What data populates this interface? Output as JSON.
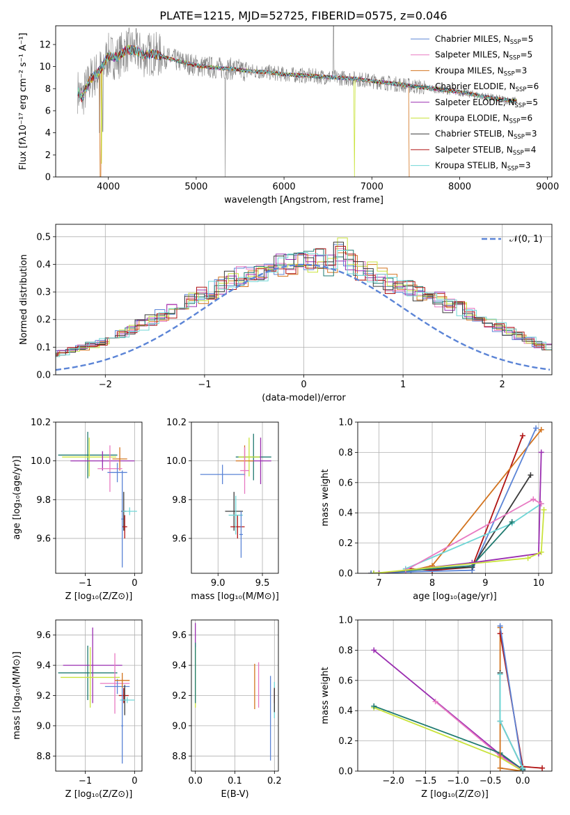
{
  "title": "PLATE=1215, MJD=52725, FIBERID=0575, z=0.046",
  "colors": {
    "chabrier_miles": "#5b84d6",
    "salpeter_miles": "#e879c2",
    "kroupa_miles": "#d2731e",
    "chabrier_elodie": "#1f7a70",
    "salpeter_elodie": "#9a2db0",
    "kroupa_elodie": "#c9e33c",
    "chabrier_stelib": "#3a3a3a",
    "salpeter_stelib": "#b01212",
    "kroupa_stelib": "#6fd6d6",
    "data_gray": "#808080",
    "normal_dashed": "#5b84d6"
  },
  "chart_data": [
    {
      "id": "spectrum",
      "type": "line",
      "xlabel": "wavelength [Angstrom, rest frame]",
      "ylabel": "Flux [fλ10⁻¹⁷ erg cm⁻² s⁻¹ A⁻¹]",
      "xlim": [
        3400,
        9050
      ],
      "ylim": [
        0,
        13.7
      ],
      "xticks": [
        4000,
        5000,
        6000,
        7000,
        8000,
        9000
      ],
      "yticks": [
        0,
        2,
        4,
        6,
        8,
        10,
        12
      ],
      "grid": false,
      "legend_position": "right",
      "legend": [
        {
          "label": "Chabrier MILES, N",
          "sub": "SSP",
          "suffix": "=5",
          "color": "#5b84d6"
        },
        {
          "label": "Salpeter MILES, N",
          "sub": "SSP",
          "suffix": "=5",
          "color": "#e879c2"
        },
        {
          "label": "Kroupa MILES, N",
          "sub": "SSP",
          "suffix": "=3",
          "color": "#d2731e"
        },
        {
          "label": "Chabrier ELODIE, N",
          "sub": "SSP",
          "suffix": "=6",
          "color": "#1f7a70"
        },
        {
          "label": "Salpeter ELODIE, N",
          "sub": "SSP",
          "suffix": "=5",
          "color": "#9a2db0"
        },
        {
          "label": "Kroupa ELODIE, N",
          "sub": "SSP",
          "suffix": "=6",
          "color": "#c9e33c"
        },
        {
          "label": "Chabrier STELIB, N",
          "sub": "SSP",
          "suffix": "=3",
          "color": "#3a3a3a"
        },
        {
          "label": "Salpeter STELIB, N",
          "sub": "SSP",
          "suffix": "=4",
          "color": "#b01212"
        },
        {
          "label": "Kroupa STELIB, N",
          "sub": "SSP",
          "suffix": "=3",
          "color": "#6fd6d6"
        }
      ],
      "continuum": {
        "x": [
          3650,
          3700,
          3800,
          3900,
          4000,
          4100,
          4200,
          4300,
          4400,
          4500,
          4700,
          4900,
          5000,
          5200,
          5400,
          5600,
          5800,
          6000,
          6200,
          6400,
          6600,
          6800,
          7000,
          7200,
          7400,
          7600,
          7800,
          8000,
          8200,
          8400,
          8600
        ],
        "y": [
          7.8,
          7.2,
          8.9,
          9.6,
          11.0,
          10.8,
          11.5,
          11.5,
          11.0,
          11.2,
          10.7,
          10.3,
          10.1,
          9.9,
          9.8,
          9.6,
          9.5,
          9.3,
          9.2,
          9.1,
          9.0,
          8.9,
          8.7,
          8.5,
          8.3,
          8.1,
          7.9,
          7.7,
          7.4,
          7.1,
          6.9
        ]
      },
      "model_dropouts": [
        {
          "x": 3910,
          "model": "Kroupa MILES"
        },
        {
          "x": 6800,
          "model": "Kroupa ELODIE"
        },
        {
          "x": 7420,
          "model": "Kroupa MILES"
        }
      ]
    },
    {
      "id": "residuals",
      "type": "line",
      "xlabel": "(data-model)/error",
      "ylabel": "Normed distribution",
      "xlim": [
        -2.5,
        2.5
      ],
      "ylim": [
        0,
        0.545
      ],
      "xticks": [
        -2,
        -1,
        0,
        1,
        2
      ],
      "yticks": [
        0.0,
        0.1,
        0.2,
        0.3,
        0.4,
        0.5
      ],
      "grid": true,
      "legend": [
        {
          "label": "𝒩(0, 1)",
          "style": "dashed",
          "color": "#5b84d6"
        }
      ],
      "legend_position": "top-right",
      "bins_edges_step": 0.1,
      "series_base": [
        0.025,
        0.028,
        0.03,
        0.034,
        0.038,
        0.044,
        0.05,
        0.056,
        0.062,
        0.072,
        0.08,
        0.09,
        0.1,
        0.11,
        0.12,
        0.135,
        0.15,
        0.165,
        0.18,
        0.2,
        0.215,
        0.23,
        0.25,
        0.27,
        0.29,
        0.305,
        0.32,
        0.34,
        0.355,
        0.37,
        0.38,
        0.39,
        0.395,
        0.4,
        0.405,
        0.41,
        0.42,
        0.4,
        0.45,
        0.41,
        0.38,
        0.37,
        0.35,
        0.33,
        0.32,
        0.31,
        0.3,
        0.28,
        0.27,
        0.25,
        0.24,
        0.22,
        0.2,
        0.185,
        0.17,
        0.155,
        0.14,
        0.125,
        0.11,
        0.1,
        0.09,
        0.08,
        0.07,
        0.062,
        0.055,
        0.048,
        0.042,
        0.038,
        0.034,
        0.03
      ]
    },
    {
      "id": "age_vs_Z",
      "type": "scatter",
      "xlabel": "Z [log₁₀(Z/Z⊙)]",
      "ylabel": "age  [log₁₀(age/yr)]",
      "xlim": [
        -1.6,
        0.15
      ],
      "ylim": [
        9.42,
        10.2
      ],
      "xticks": [
        -1,
        0
      ],
      "yticks": [
        9.6,
        9.8,
        10.0,
        10.2
      ],
      "grid": true,
      "points": [
        {
          "x": -0.95,
          "y": 10.03,
          "xerr": 0.6,
          "yerr": 0.12,
          "color": "#1f7a70"
        },
        {
          "x": -0.92,
          "y": 10.02,
          "xerr": 0.55,
          "yerr": 0.1,
          "color": "#c9e33c"
        },
        {
          "x": -0.65,
          "y": 10.0,
          "xerr": 0.65,
          "yerr": 0.05,
          "color": "#9a2db0"
        },
        {
          "x": -0.3,
          "y": 10.01,
          "xerr": 0.15,
          "yerr": 0.06,
          "color": "#d2731e"
        },
        {
          "x": -0.5,
          "y": 9.96,
          "xerr": 0.25,
          "yerr": 0.12,
          "color": "#e879c2"
        },
        {
          "x": -0.35,
          "y": 9.94,
          "xerr": 0.2,
          "yerr": 0.05,
          "color": "#5b84d6"
        },
        {
          "x": -0.22,
          "y": 9.74,
          "xerr": 0.05,
          "yerr": 0.1,
          "color": "#3a3a3a"
        },
        {
          "x": -0.2,
          "y": 9.66,
          "xerr": 0.05,
          "yerr": 0.06,
          "color": "#b01212"
        },
        {
          "x": -0.1,
          "y": 9.74,
          "xerr": 0.15,
          "yerr": 0.02,
          "color": "#6fd6d6"
        },
        {
          "x": -0.25,
          "y": 9.7,
          "xerr": 0.02,
          "yerr": 0.25,
          "color": "#5b84d6"
        }
      ]
    },
    {
      "id": "age_vs_mass",
      "type": "scatter",
      "xlabel": "mass [log₁₀(M/M⊙)]",
      "ylabel": "",
      "xlim": [
        8.7,
        9.68
      ],
      "ylim": [
        9.42,
        10.2
      ],
      "xticks": [
        9.0,
        9.5
      ],
      "yticks": [
        9.6,
        9.8,
        10.0,
        10.2
      ],
      "grid": true,
      "points": [
        {
          "x": 9.4,
          "y": 10.02,
          "xerr": 0.2,
          "yerr": 0.12,
          "color": "#1f7a70"
        },
        {
          "x": 9.48,
          "y": 10.0,
          "xerr": 0.12,
          "yerr": 0.12,
          "color": "#9a2db0"
        },
        {
          "x": 9.35,
          "y": 10.02,
          "xerr": 0.12,
          "yerr": 0.1,
          "color": "#c9e33c"
        },
        {
          "x": 9.3,
          "y": 10.0,
          "xerr": 0.1,
          "yerr": 0.08,
          "color": "#d2731e"
        },
        {
          "x": 9.3,
          "y": 9.95,
          "xerr": 0.05,
          "yerr": 0.12,
          "color": "#e879c2"
        },
        {
          "x": 9.05,
          "y": 9.93,
          "xerr": 0.25,
          "yerr": 0.05,
          "color": "#5b84d6"
        },
        {
          "x": 9.18,
          "y": 9.74,
          "xerr": 0.1,
          "yerr": 0.1,
          "color": "#3a3a3a"
        },
        {
          "x": 9.22,
          "y": 9.66,
          "xerr": 0.08,
          "yerr": 0.06,
          "color": "#b01212"
        },
        {
          "x": 9.2,
          "y": 9.72,
          "xerr": 0.08,
          "yerr": 0.1,
          "color": "#6fd6d6"
        },
        {
          "x": 9.26,
          "y": 9.62,
          "xerr": 0.02,
          "yerr": 0.12,
          "color": "#5b84d6"
        }
      ]
    },
    {
      "id": "weight_vs_age",
      "type": "line",
      "xlabel": "age  [log₁₀(age/yr)]",
      "ylabel": "mass weight",
      "xlim": [
        6.6,
        10.25
      ],
      "ylim": [
        0,
        1.0
      ],
      "xticks": [
        7,
        8,
        9,
        10
      ],
      "yticks": [
        0.0,
        0.2,
        0.4,
        0.6,
        0.8,
        1.0
      ],
      "grid": true,
      "series": [
        {
          "color": "#b01212",
          "x": [
            7.6,
            8.0,
            8.75,
            9.7
          ],
          "y": [
            0.03,
            0.02,
            0.04,
            0.91
          ]
        },
        {
          "color": "#d2731e",
          "x": [
            6.85,
            7.5,
            8.0,
            10.05
          ],
          "y": [
            0.0,
            0.01,
            0.05,
            0.95
          ]
        },
        {
          "color": "#5b84d6",
          "x": [
            6.85,
            7.6,
            8.75,
            9.95
          ],
          "y": [
            0.0,
            0.01,
            0.02,
            0.96
          ]
        },
        {
          "color": "#3a3a3a",
          "x": [
            7.5,
            8.75,
            9.85
          ],
          "y": [
            0.02,
            0.04,
            0.65
          ]
        },
        {
          "color": "#6fd6d6",
          "x": [
            7.5,
            9.5,
            10.05
          ],
          "y": [
            0.03,
            0.33,
            0.46
          ]
        },
        {
          "color": "#1f7a70",
          "x": [
            6.9,
            8.75,
            9.5
          ],
          "y": [
            0.0,
            0.05,
            0.34
          ]
        },
        {
          "color": "#9a2db0",
          "x": [
            7.0,
            8.75,
            10.0,
            10.05
          ],
          "y": [
            0.0,
            0.07,
            0.13,
            0.8
          ]
        },
        {
          "color": "#e879c2",
          "x": [
            7.5,
            9.9,
            10.05
          ],
          "y": [
            0.02,
            0.49,
            0.46
          ]
        },
        {
          "color": "#c9e33c",
          "x": [
            6.9,
            9.8,
            10.05,
            10.1
          ],
          "y": [
            0.0,
            0.1,
            0.14,
            0.42
          ]
        }
      ]
    },
    {
      "id": "mass_vs_Z",
      "type": "scatter",
      "xlabel": "Z [log₁₀(Z/Z⊙)]",
      "ylabel": "mass [log₁₀(M/M⊙)]",
      "xlim": [
        -1.6,
        0.15
      ],
      "ylim": [
        8.7,
        9.7
      ],
      "xticks": [
        -1,
        0
      ],
      "yticks": [
        8.8,
        9.0,
        9.2,
        9.4,
        9.6
      ],
      "grid": true,
      "points": [
        {
          "x": -0.95,
          "y": 9.35,
          "xerr": 0.6,
          "yerr": 0.18,
          "color": "#1f7a70"
        },
        {
          "x": -0.85,
          "y": 9.4,
          "xerr": 0.6,
          "yerr": 0.25,
          "color": "#9a2db0"
        },
        {
          "x": -0.9,
          "y": 9.32,
          "xerr": 0.6,
          "yerr": 0.2,
          "color": "#c9e33c"
        },
        {
          "x": -0.4,
          "y": 9.28,
          "xerr": 0.3,
          "yerr": 0.2,
          "color": "#e879c2"
        },
        {
          "x": -0.35,
          "y": 9.26,
          "xerr": 0.25,
          "yerr": 0.05,
          "color": "#5b84d6"
        },
        {
          "x": -0.25,
          "y": 9.3,
          "xerr": 0.15,
          "yerr": 0.05,
          "color": "#d2731e"
        },
        {
          "x": -0.22,
          "y": 9.2,
          "xerr": 0.1,
          "yerr": 0.05,
          "color": "#b01212"
        },
        {
          "x": -0.2,
          "y": 9.17,
          "xerr": 0.02,
          "yerr": 0.1,
          "color": "#3a3a3a"
        },
        {
          "x": -0.15,
          "y": 9.17,
          "xerr": 0.15,
          "yerr": 0.02,
          "color": "#6fd6d6"
        },
        {
          "x": -0.25,
          "y": 9.0,
          "xerr": 0.02,
          "yerr": 0.25,
          "color": "#5b84d6"
        }
      ]
    },
    {
      "id": "mass_vs_EBV",
      "type": "scatter",
      "xlabel": "E(B-V)",
      "ylabel": "",
      "xlim": [
        -0.01,
        0.21
      ],
      "ylim": [
        8.7,
        9.7
      ],
      "xticks": [
        0.0,
        0.1,
        0.2
      ],
      "yticks": [
        8.8,
        9.0,
        9.2,
        9.4,
        9.6
      ],
      "grid": true,
      "points": [
        {
          "x": 0.0,
          "y": 9.6,
          "xerr": 0.0,
          "yerr": 0.08,
          "color": "#9a2db0"
        },
        {
          "x": 0.0,
          "y": 9.32,
          "xerr": 0.0,
          "yerr": 0.2,
          "color": "#c9e33c"
        },
        {
          "x": 0.0,
          "y": 9.35,
          "xerr": 0.0,
          "yerr": 0.2,
          "color": "#1f7a70"
        },
        {
          "x": 0.15,
          "y": 9.26,
          "xerr": 0.0,
          "yerr": 0.15,
          "color": "#d2731e"
        },
        {
          "x": 0.16,
          "y": 9.27,
          "xerr": 0.0,
          "yerr": 0.15,
          "color": "#e879c2"
        },
        {
          "x": 0.19,
          "y": 9.05,
          "xerr": 0.0,
          "yerr": 0.28,
          "color": "#5b84d6"
        },
        {
          "x": 0.2,
          "y": 9.17,
          "xerr": 0.0,
          "yerr": 0.12,
          "color": "#6fd6d6"
        },
        {
          "x": 0.2,
          "y": 9.2,
          "xerr": 0.0,
          "yerr": 0.05,
          "color": "#b01212"
        },
        {
          "x": 0.2,
          "y": 9.17,
          "xerr": 0.0,
          "yerr": 0.08,
          "color": "#3a3a3a"
        }
      ]
    },
    {
      "id": "weight_vs_Z",
      "type": "line",
      "xlabel": "Z [log₁₀(Z/Z⊙)]",
      "ylabel": "mass weight",
      "xlim": [
        -2.55,
        0.45
      ],
      "ylim": [
        0,
        1.0
      ],
      "xticks": [
        -2.0,
        -1.5,
        -1.0,
        -0.5,
        0.0
      ],
      "yticks": [
        0.0,
        0.2,
        0.4,
        0.6,
        0.8,
        1.0
      ],
      "grid": true,
      "series": [
        {
          "color": "#9a2db0",
          "x": [
            -2.3,
            -0.35,
            0.0
          ],
          "y": [
            0.8,
            0.11,
            0.01
          ]
        },
        {
          "color": "#e879c2",
          "x": [
            -1.35,
            -0.35,
            0.0
          ],
          "y": [
            0.46,
            0.1,
            0.0
          ]
        },
        {
          "color": "#c9e33c",
          "x": [
            -2.3,
            -0.35,
            0.0
          ],
          "y": [
            0.42,
            0.09,
            0.0
          ]
        },
        {
          "color": "#1f7a70",
          "x": [
            -2.3,
            -0.35,
            0.0
          ],
          "y": [
            0.43,
            0.12,
            0.01
          ]
        },
        {
          "color": "#d2731e",
          "x": [
            -0.35,
            -0.35,
            0.0
          ],
          "y": [
            0.95,
            0.02,
            0.0
          ]
        },
        {
          "color": "#b01212",
          "x": [
            -0.35,
            0.0,
            0.3
          ],
          "y": [
            0.91,
            0.03,
            0.02
          ]
        },
        {
          "color": "#5b84d6",
          "x": [
            -0.35,
            0.0
          ],
          "y": [
            0.96,
            0.0
          ]
        },
        {
          "color": "#3a3a3a",
          "x": [
            -0.35,
            -0.35,
            0.0
          ],
          "y": [
            0.65,
            0.33,
            0.02
          ]
        },
        {
          "color": "#6fd6d6",
          "x": [
            -0.35,
            -0.35,
            0.0
          ],
          "y": [
            0.64,
            0.33,
            0.02
          ]
        }
      ]
    }
  ]
}
